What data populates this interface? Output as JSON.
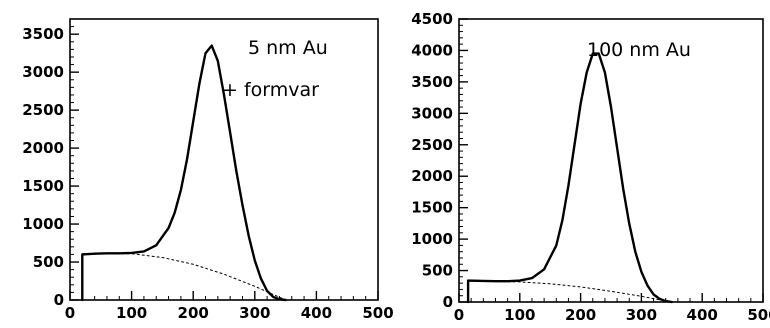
{
  "chart_data": [
    {
      "type": "line",
      "xlim": [
        0,
        500
      ],
      "ylim": [
        0,
        3700
      ],
      "x_ticks": [
        "0",
        "100",
        "200",
        "300",
        "400",
        "500"
      ],
      "y_ticks": [
        "0",
        "500",
        "1000",
        "1500",
        "2000",
        "2500",
        "3000",
        "3500"
      ],
      "annotations": [
        "5 nm Au",
        "+ formvar"
      ],
      "grid": false,
      "series": [
        {
          "style": "solid-noisy",
          "x": [
            20,
            20,
            40,
            60,
            80,
            100,
            120,
            140,
            160,
            170,
            180,
            190,
            200,
            210,
            220,
            230,
            240,
            250,
            260,
            270,
            280,
            290,
            300,
            310,
            320,
            330,
            340,
            350
          ],
          "y": [
            0,
            600,
            610,
            615,
            615,
            620,
            640,
            720,
            950,
            1150,
            1450,
            1850,
            2350,
            2850,
            3250,
            3350,
            3150,
            2700,
            2200,
            1700,
            1250,
            850,
            520,
            280,
            120,
            40,
            10,
            0
          ]
        },
        {
          "style": "dotted",
          "x": [
            20,
            100,
            150,
            200,
            250,
            300,
            350
          ],
          "y": [
            610,
            610,
            560,
            470,
            340,
            180,
            0
          ]
        }
      ]
    },
    {
      "type": "line",
      "xlim": [
        0,
        500
      ],
      "ylim": [
        0,
        4500
      ],
      "x_ticks": [
        "0",
        "100",
        "200",
        "300",
        "400",
        "500"
      ],
      "y_ticks": [
        "0",
        "500",
        "1000",
        "1500",
        "2000",
        "2500",
        "3000",
        "3500",
        "4000",
        "4500"
      ],
      "annotations": [
        "100 nm Au"
      ],
      "grid": false,
      "series": [
        {
          "style": "solid-noisy",
          "x": [
            15,
            15,
            40,
            60,
            80,
            100,
            120,
            140,
            160,
            170,
            180,
            190,
            200,
            210,
            220,
            230,
            240,
            250,
            260,
            270,
            280,
            290,
            300,
            310,
            320,
            330,
            340,
            350
          ],
          "y": [
            0,
            340,
            335,
            330,
            330,
            340,
            380,
            520,
            900,
            1300,
            1850,
            2500,
            3150,
            3650,
            3950,
            3950,
            3650,
            3100,
            2450,
            1800,
            1250,
            800,
            480,
            260,
            120,
            50,
            15,
            0
          ]
        },
        {
          "style": "dotted",
          "x": [
            15,
            100,
            150,
            200,
            250,
            300,
            350
          ],
          "y": [
            330,
            320,
            290,
            240,
            170,
            90,
            0
          ]
        }
      ]
    }
  ]
}
